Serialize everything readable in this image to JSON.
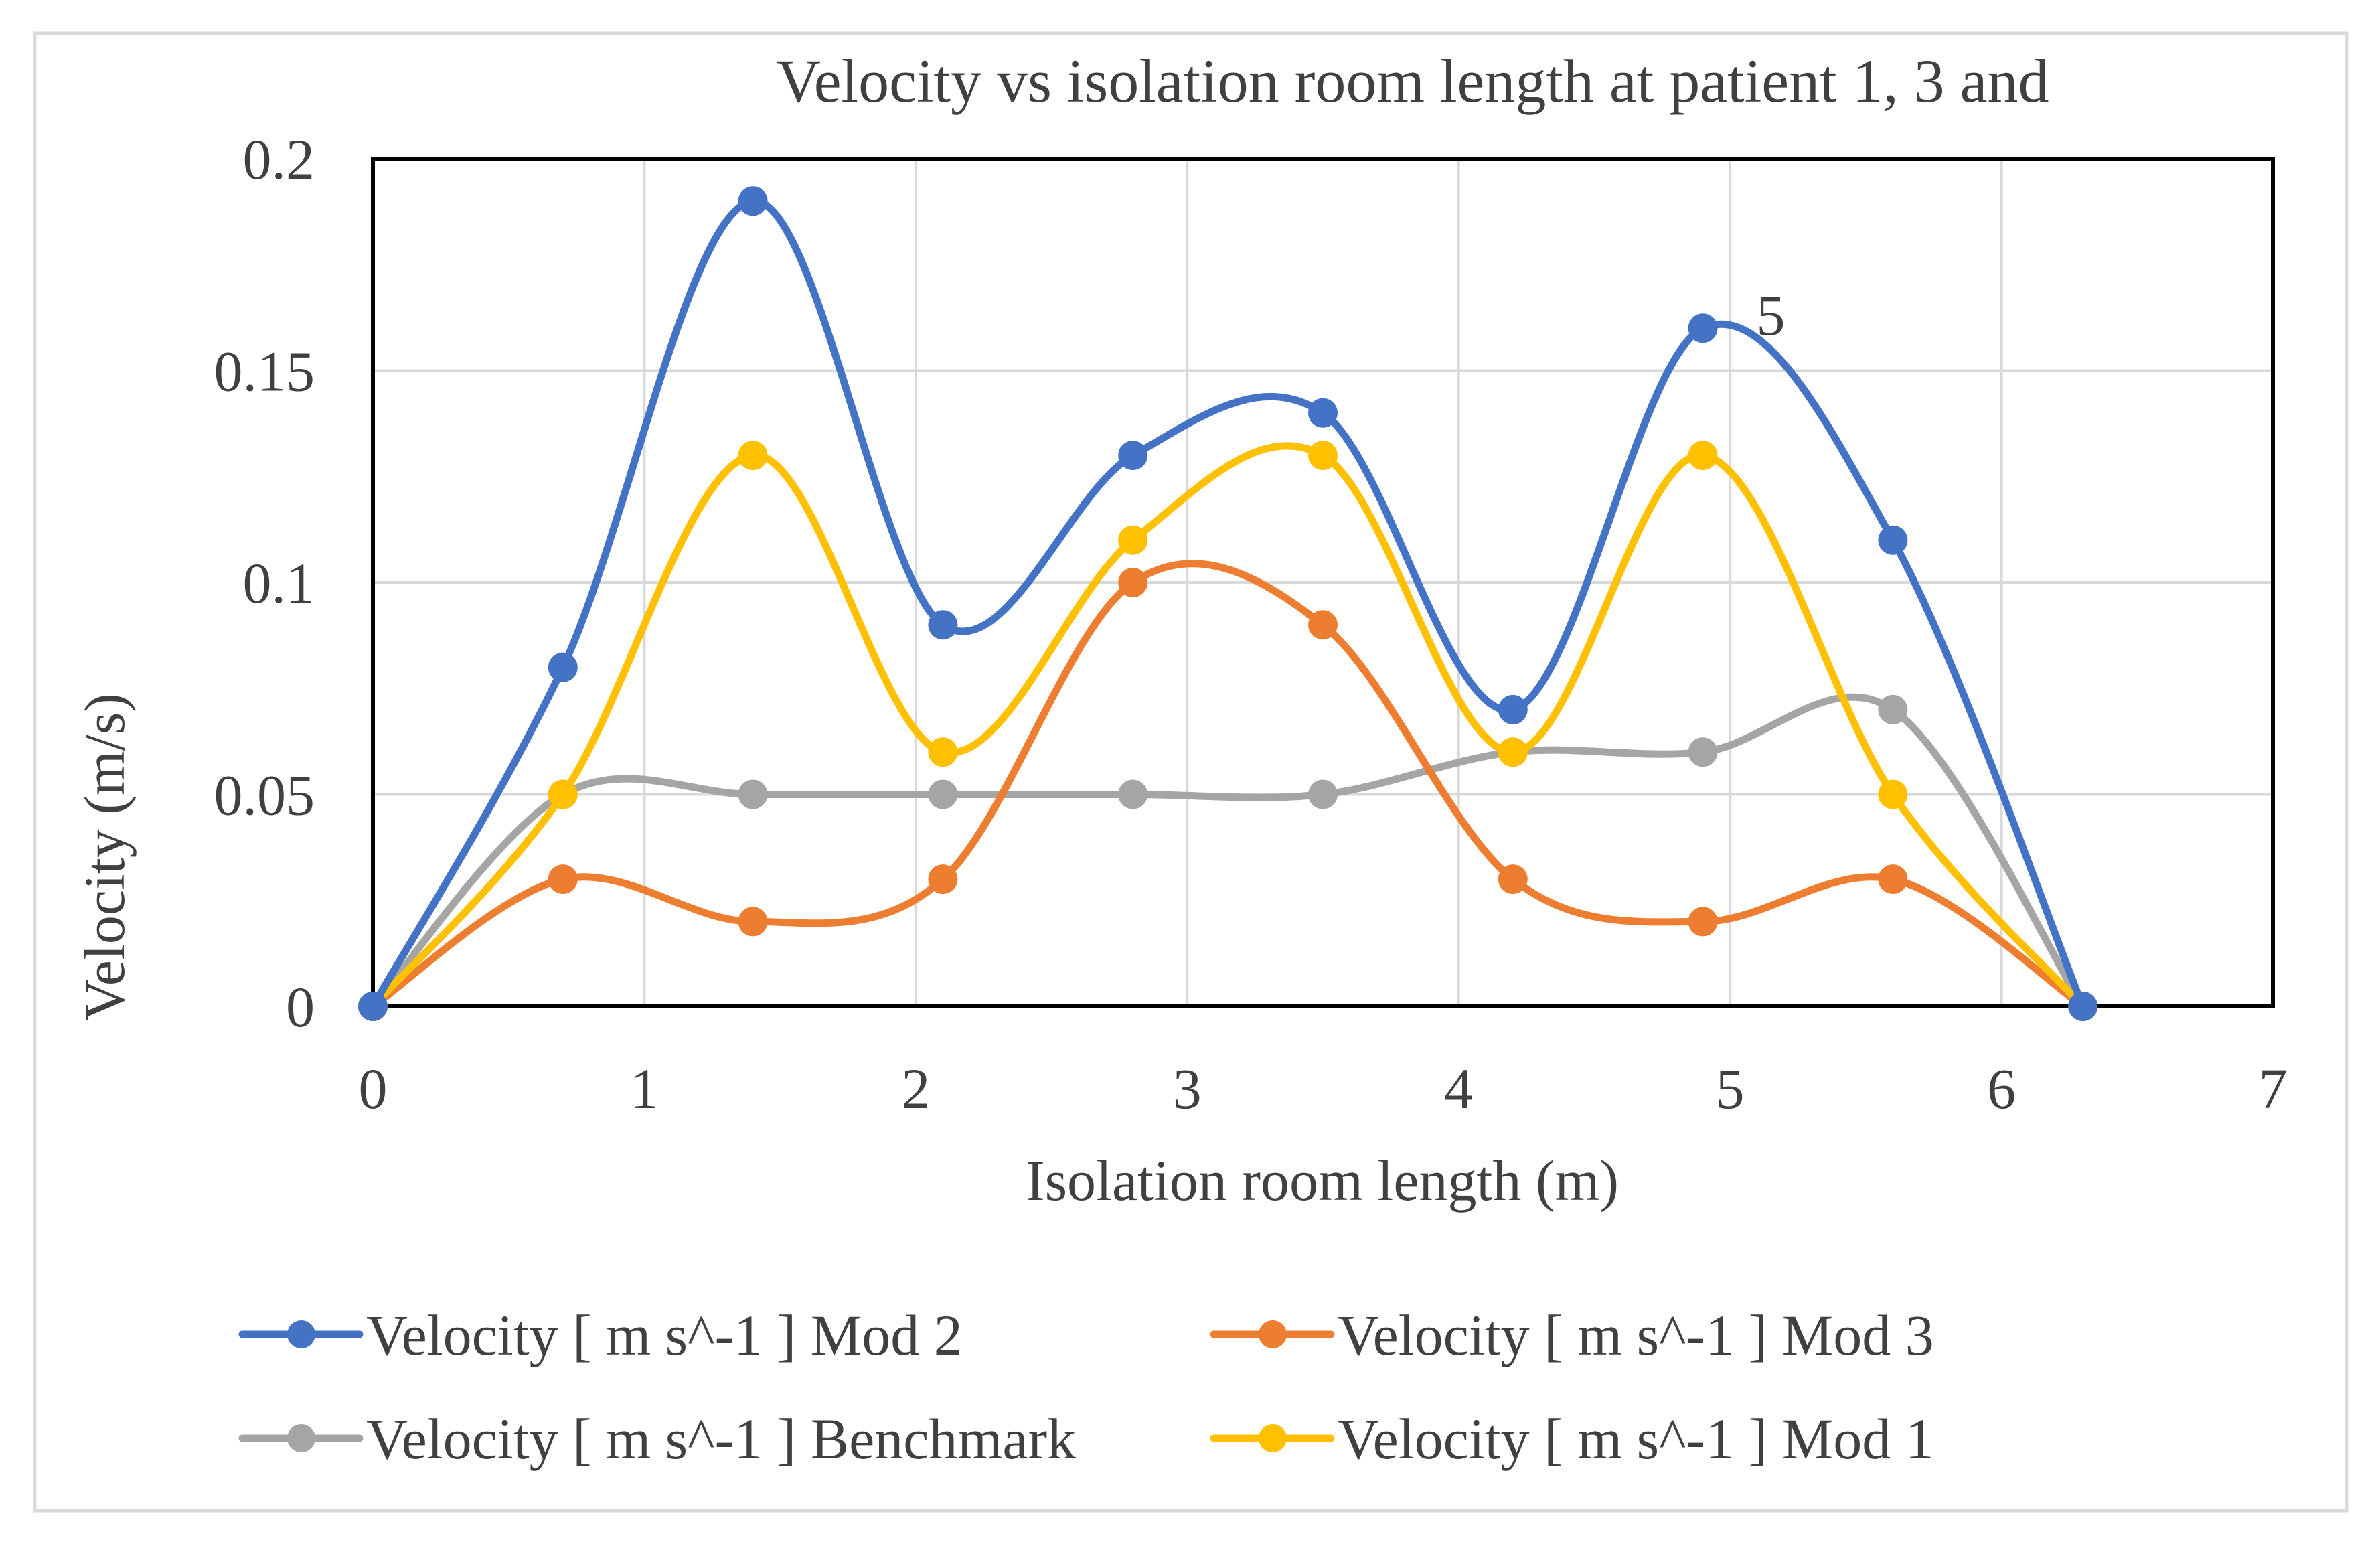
{
  "chart_data": {
    "type": "line",
    "title": "Velocity vs isolation room length at patient 1, 3 and",
    "annotation": "5",
    "xlabel": "Isolation room length (m)",
    "ylabel": "Velocity (m/s)",
    "xlim": [
      0,
      7
    ],
    "ylim": [
      0,
      0.2
    ],
    "x_ticks": [
      "0",
      "1",
      "2",
      "3",
      "4",
      "5",
      "6",
      "7"
    ],
    "y_ticks": [
      "0",
      "0.05",
      "0.1",
      "0.15",
      "0.2"
    ],
    "grid": true,
    "legend_position": "bottom",
    "smooth": true,
    "x": [
      0,
      0.7,
      1.4,
      2.1,
      2.8,
      3.5,
      4.2,
      4.9,
      5.6,
      6.3
    ],
    "series": [
      {
        "name": "Velocity [ m s^-1 ] Mod 2",
        "color": "#4472c4",
        "values": [
          0,
          0.08,
          0.19,
          0.09,
          0.13,
          0.14,
          0.07,
          0.16,
          0.11,
          0
        ]
      },
      {
        "name": "Velocity [ m s^-1 ] Mod 3",
        "color": "#ed7d31",
        "values": [
          0,
          0.03,
          0.02,
          0.03,
          0.1,
          0.09,
          0.03,
          0.02,
          0.03,
          0
        ]
      },
      {
        "name": "Velocity [ m s^-1 ] Benchmark",
        "color": "#a5a5a5",
        "values": [
          0,
          0.05,
          0.05,
          0.05,
          0.05,
          0.05,
          0.06,
          0.06,
          0.07,
          0
        ]
      },
      {
        "name": "Velocity [ m s^-1 ] Mod 1",
        "color": "#ffc000",
        "values": [
          0,
          0.05,
          0.13,
          0.06,
          0.11,
          0.13,
          0.06,
          0.13,
          0.05,
          0
        ]
      }
    ],
    "legend_order": [
      0,
      1,
      2,
      3
    ]
  }
}
